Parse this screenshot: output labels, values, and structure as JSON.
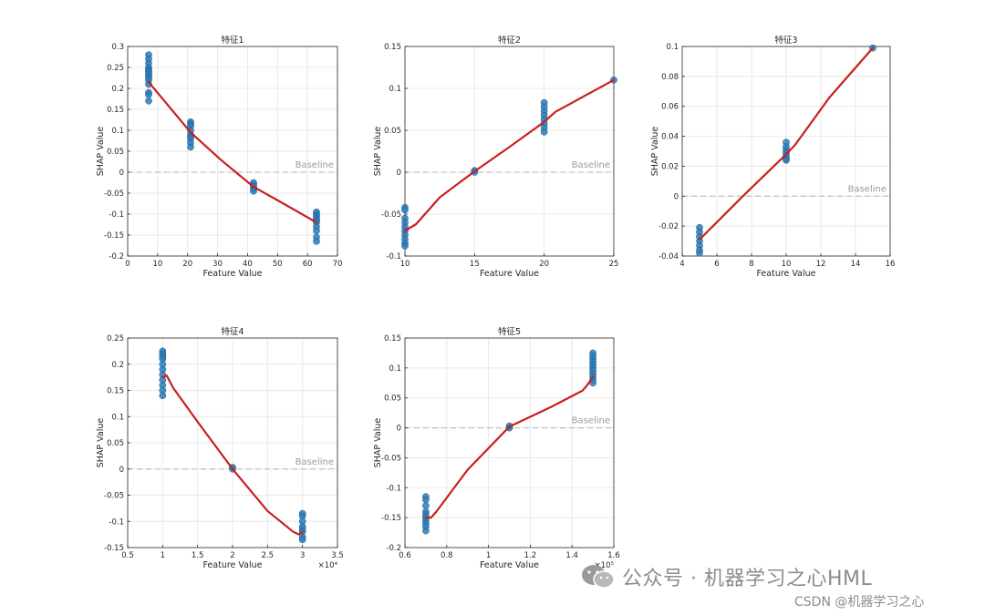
{
  "chart_data": [
    {
      "type": "scatter",
      "title": "特征1",
      "xlabel": "Feature Value",
      "ylabel": "SHAP Value",
      "xlim": [
        0,
        70
      ],
      "ylim": [
        -0.2,
        0.3
      ],
      "xticks": [
        0,
        10,
        20,
        30,
        40,
        50,
        60,
        70
      ],
      "yticks": [
        -0.2,
        -0.15,
        -0.1,
        -0.05,
        0,
        0.05,
        0.1,
        0.15,
        0.2,
        0.25,
        0.3
      ],
      "xtick_labels": [
        "0",
        "10",
        "20",
        "30",
        "40",
        "50",
        "60",
        "70"
      ],
      "ytick_labels": [
        "-0.2",
        "-0.15",
        "-0.1",
        "-0.05",
        "0",
        "0.05",
        "0.1",
        "0.15",
        "0.2",
        "0.25",
        "0.3"
      ],
      "x_exponent": "",
      "baseline": 0,
      "baseline_label": "Baseline",
      "grid": true,
      "points": [
        [
          7,
          0.28
        ],
        [
          7,
          0.27
        ],
        [
          7,
          0.26
        ],
        [
          7,
          0.25
        ],
        [
          7,
          0.245
        ],
        [
          7,
          0.24
        ],
        [
          7,
          0.235
        ],
        [
          7,
          0.23
        ],
        [
          7,
          0.225
        ],
        [
          7,
          0.22
        ],
        [
          7,
          0.21
        ],
        [
          7,
          0.19
        ],
        [
          7,
          0.185
        ],
        [
          7,
          0.17
        ],
        [
          21,
          0.12
        ],
        [
          21,
          0.115
        ],
        [
          21,
          0.11
        ],
        [
          21,
          0.1
        ],
        [
          21,
          0.09
        ],
        [
          21,
          0.085
        ],
        [
          21,
          0.08
        ],
        [
          21,
          0.07
        ],
        [
          21,
          0.06
        ],
        [
          42,
          -0.025
        ],
        [
          42,
          -0.03
        ],
        [
          42,
          -0.035
        ],
        [
          42,
          -0.04
        ],
        [
          42,
          -0.045
        ],
        [
          63,
          -0.095
        ],
        [
          63,
          -0.1
        ],
        [
          63,
          -0.105
        ],
        [
          63,
          -0.11
        ],
        [
          63,
          -0.115
        ],
        [
          63,
          -0.12
        ],
        [
          63,
          -0.13
        ],
        [
          63,
          -0.14
        ],
        [
          63,
          -0.155
        ],
        [
          63,
          -0.165
        ]
      ],
      "curve": [
        [
          7,
          0.215
        ],
        [
          14,
          0.155
        ],
        [
          21,
          0.095
        ],
        [
          31,
          0.03
        ],
        [
          42,
          -0.035
        ],
        [
          52,
          -0.075
        ],
        [
          63,
          -0.12
        ]
      ]
    },
    {
      "type": "scatter",
      "title": "特征2",
      "xlabel": "Feature Value",
      "ylabel": "SHAP Value",
      "xlim": [
        10,
        25
      ],
      "ylim": [
        -0.1,
        0.15
      ],
      "xticks": [
        10,
        15,
        20,
        25
      ],
      "yticks": [
        -0.1,
        -0.05,
        0,
        0.05,
        0.1,
        0.15
      ],
      "xtick_labels": [
        "10",
        "15",
        "20",
        "25"
      ],
      "ytick_labels": [
        "-0.1",
        "-0.05",
        "0",
        "0.05",
        "0.1",
        "0.15"
      ],
      "x_exponent": "",
      "baseline": 0,
      "baseline_label": "Baseline",
      "grid": true,
      "points": [
        [
          10,
          -0.042
        ],
        [
          10,
          -0.045
        ],
        [
          10,
          -0.055
        ],
        [
          10,
          -0.06
        ],
        [
          10,
          -0.065
        ],
        [
          10,
          -0.07
        ],
        [
          10,
          -0.075
        ],
        [
          10,
          -0.08
        ],
        [
          10,
          -0.085
        ],
        [
          10,
          -0.088
        ],
        [
          15,
          0.002
        ],
        [
          15,
          0
        ],
        [
          20,
          0.083
        ],
        [
          20,
          0.078
        ],
        [
          20,
          0.073
        ],
        [
          20,
          0.068
        ],
        [
          20,
          0.063
        ],
        [
          20,
          0.058
        ],
        [
          20,
          0.053
        ],
        [
          20,
          0.048
        ],
        [
          25,
          0.11
        ]
      ],
      "curve": [
        [
          10,
          -0.07
        ],
        [
          10.8,
          -0.062
        ],
        [
          12.5,
          -0.03
        ],
        [
          15,
          0.001
        ],
        [
          17.5,
          0.03
        ],
        [
          20,
          0.06
        ],
        [
          20.8,
          0.072
        ],
        [
          25,
          0.11
        ]
      ]
    },
    {
      "type": "scatter",
      "title": "特征3",
      "xlabel": "Feature Value",
      "ylabel": "SHAP Value",
      "xlim": [
        4,
        16
      ],
      "ylim": [
        -0.04,
        0.1
      ],
      "xticks": [
        4,
        6,
        8,
        10,
        12,
        14,
        16
      ],
      "yticks": [
        -0.04,
        -0.02,
        0,
        0.02,
        0.04,
        0.06,
        0.08,
        0.1
      ],
      "xtick_labels": [
        "4",
        "6",
        "8",
        "10",
        "12",
        "14",
        "16"
      ],
      "ytick_labels": [
        "-0.04",
        "-0.02",
        "0",
        "0.02",
        "0.04",
        "0.06",
        "0.08",
        "0.1"
      ],
      "x_exponent": "",
      "baseline": 0,
      "baseline_label": "Baseline",
      "grid": true,
      "points": [
        [
          5,
          -0.021
        ],
        [
          5,
          -0.024
        ],
        [
          5,
          -0.027
        ],
        [
          5,
          -0.03
        ],
        [
          5,
          -0.033
        ],
        [
          5,
          -0.036
        ],
        [
          5,
          -0.038
        ],
        [
          10,
          0.036
        ],
        [
          10,
          0.033
        ],
        [
          10,
          0.031
        ],
        [
          10,
          0.029
        ],
        [
          10,
          0.027
        ],
        [
          10,
          0.025
        ],
        [
          10,
          0.024
        ],
        [
          15,
          0.099
        ]
      ],
      "curve": [
        [
          5,
          -0.029
        ],
        [
          7.5,
          0
        ],
        [
          10,
          0.028
        ],
        [
          10.5,
          0.034
        ],
        [
          12.5,
          0.066
        ],
        [
          15,
          0.099
        ]
      ]
    },
    {
      "type": "scatter",
      "title": "特征4",
      "xlabel": "Feature Value",
      "ylabel": "SHAP Value",
      "xlim": [
        5000,
        35000
      ],
      "ylim": [
        -0.15,
        0.25
      ],
      "xticks": [
        5000,
        10000,
        15000,
        20000,
        25000,
        30000,
        35000
      ],
      "yticks": [
        -0.15,
        -0.1,
        -0.05,
        0,
        0.05,
        0.1,
        0.15,
        0.2,
        0.25
      ],
      "xtick_labels": [
        "0.5",
        "1",
        "1.5",
        "2",
        "2.5",
        "3",
        "3.5"
      ],
      "ytick_labels": [
        "-0.15",
        "-0.1",
        "-0.05",
        "0",
        "0.05",
        "0.1",
        "0.15",
        "0.2",
        "0.25"
      ],
      "x_exponent": "×10⁴",
      "baseline": 0,
      "baseline_label": "Baseline",
      "grid": true,
      "points": [
        [
          10000,
          0.225
        ],
        [
          10000,
          0.22
        ],
        [
          10000,
          0.215
        ],
        [
          10000,
          0.21
        ],
        [
          10000,
          0.2
        ],
        [
          10000,
          0.19
        ],
        [
          10000,
          0.18
        ],
        [
          10000,
          0.17
        ],
        [
          10000,
          0.16
        ],
        [
          10000,
          0.15
        ],
        [
          10000,
          0.14
        ],
        [
          20000,
          0.003
        ],
        [
          20000,
          0
        ],
        [
          30000,
          -0.085
        ],
        [
          30000,
          -0.09
        ],
        [
          30000,
          -0.1
        ],
        [
          30000,
          -0.11
        ],
        [
          30000,
          -0.115
        ],
        [
          30000,
          -0.12
        ],
        [
          30000,
          -0.13
        ],
        [
          30000,
          -0.135
        ]
      ],
      "curve": [
        [
          10000,
          0.175
        ],
        [
          10600,
          0.178
        ],
        [
          11500,
          0.155
        ],
        [
          15000,
          0.09
        ],
        [
          20000,
          0
        ],
        [
          25000,
          -0.08
        ],
        [
          28700,
          -0.12
        ],
        [
          29500,
          -0.125
        ],
        [
          30000,
          -0.12
        ]
      ]
    },
    {
      "type": "scatter",
      "title": "特征5",
      "xlabel": "Feature Value",
      "ylabel": "SHAP Value",
      "xlim": [
        60000,
        160000
      ],
      "ylim": [
        -0.2,
        0.15
      ],
      "xticks": [
        60000,
        80000,
        100000,
        120000,
        140000,
        160000
      ],
      "yticks": [
        -0.2,
        -0.15,
        -0.1,
        -0.05,
        0,
        0.05,
        0.1,
        0.15
      ],
      "xtick_labels": [
        "0.6",
        "0.8",
        "1",
        "1.2",
        "1.4",
        "1.6"
      ],
      "ytick_labels": [
        "-0.2",
        "-0.15",
        "-0.1",
        "-0.05",
        "0",
        "0.05",
        "0.1",
        "0.15"
      ],
      "x_exponent": "×10⁵",
      "baseline": 0,
      "baseline_label": "Baseline",
      "grid": true,
      "points": [
        [
          70000,
          -0.115
        ],
        [
          70000,
          -0.12
        ],
        [
          70000,
          -0.13
        ],
        [
          70000,
          -0.14
        ],
        [
          70000,
          -0.145
        ],
        [
          70000,
          -0.15
        ],
        [
          70000,
          -0.155
        ],
        [
          70000,
          -0.16
        ],
        [
          70000,
          -0.165
        ],
        [
          70000,
          -0.172
        ],
        [
          110000,
          0.003
        ],
        [
          110000,
          0
        ],
        [
          150000,
          0.125
        ],
        [
          150000,
          0.12
        ],
        [
          150000,
          0.115
        ],
        [
          150000,
          0.11
        ],
        [
          150000,
          0.105
        ],
        [
          150000,
          0.1
        ],
        [
          150000,
          0.095
        ],
        [
          150000,
          0.09
        ],
        [
          150000,
          0.085
        ],
        [
          150000,
          0.08
        ],
        [
          150000,
          0.075
        ]
      ],
      "curve": [
        [
          70000,
          -0.15
        ],
        [
          72500,
          -0.15
        ],
        [
          75000,
          -0.14
        ],
        [
          90000,
          -0.07
        ],
        [
          110000,
          0.002
        ],
        [
          130000,
          0.035
        ],
        [
          145000,
          0.062
        ],
        [
          147000,
          0.07
        ],
        [
          150000,
          0.085
        ]
      ]
    }
  ],
  "watermark": {
    "line1": "公众号 · 机器学习之心HML",
    "line2": "CSDN @机器学习之心"
  },
  "colors": {
    "marker": "#2b7bb9",
    "curve": "#c8201e",
    "grid": "#e8e8e8",
    "baseline": "#b4b4b4",
    "watermark": "#8c8c8c"
  }
}
